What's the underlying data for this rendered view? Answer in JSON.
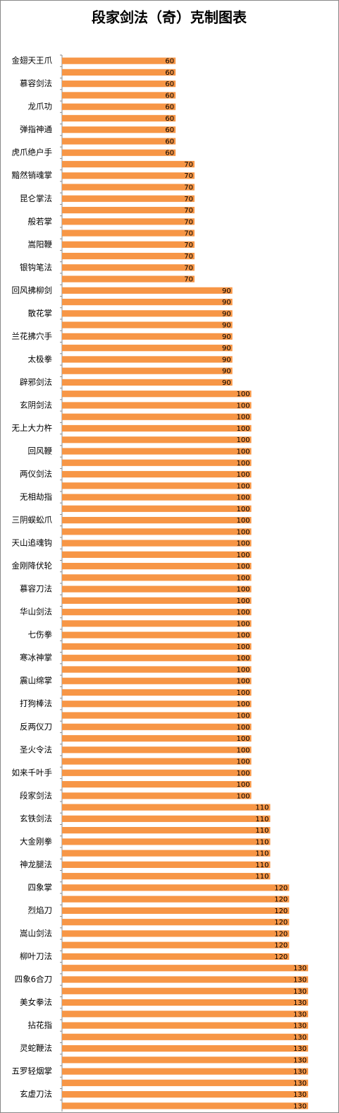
{
  "chart_data": {
    "type": "barh",
    "title": "段家剑法（奇）克制图表",
    "categories": [
      "金翅天王爪",
      null,
      "慕容剑法",
      null,
      "龙爪功",
      null,
      "弹指神通",
      null,
      "虎爪绝户手",
      null,
      "黯然销魂掌",
      null,
      "昆仑掌法",
      null,
      "般若掌",
      null,
      "嵩阳鞭",
      null,
      "银钩笔法",
      null,
      "回风拂柳剑",
      null,
      "散花掌",
      null,
      "兰花拂穴手",
      null,
      "太极拳",
      null,
      "辟邪剑法",
      null,
      "玄阴剑法",
      null,
      "无上大力杵",
      null,
      "回风鞭",
      null,
      "两仪剑法",
      null,
      "无相劫指",
      null,
      "三阴蜈蚣爪",
      null,
      "天山追魂钩",
      null,
      "金刚降伏轮",
      null,
      "慕容刀法",
      null,
      "华山剑法",
      null,
      "七伤拳",
      null,
      "寒冰神掌",
      null,
      "震山绵掌",
      null,
      "打狗棒法",
      null,
      "反两仪刀",
      null,
      "圣火令法",
      null,
      "如来千叶手",
      null,
      "段家剑法",
      null,
      "玄铁剑法",
      null,
      "大金刚拳",
      null,
      "神龙腿法",
      null,
      "四象掌",
      null,
      "烈焰刀",
      null,
      "嵩山剑法",
      null,
      "柳叶刀法",
      null,
      "四象6合刀",
      null,
      "美女拳法",
      null,
      "拈花指",
      null,
      "灵蛇鞭法",
      null,
      "五罗轻烟掌",
      null,
      "玄虚刀法",
      null
    ],
    "values": [
      60,
      60,
      60,
      60,
      60,
      60,
      60,
      60,
      60,
      70,
      70,
      70,
      70,
      70,
      70,
      70,
      70,
      70,
      70,
      70,
      90,
      90,
      90,
      90,
      90,
      90,
      90,
      90,
      90,
      100,
      100,
      100,
      100,
      100,
      100,
      100,
      100,
      100,
      100,
      100,
      100,
      100,
      100,
      100,
      100,
      100,
      100,
      100,
      100,
      100,
      100,
      100,
      100,
      100,
      100,
      100,
      100,
      100,
      100,
      100,
      100,
      100,
      100,
      100,
      100,
      110,
      110,
      110,
      110,
      110,
      110,
      110,
      120,
      120,
      120,
      120,
      120,
      120,
      120,
      130,
      130,
      130,
      130,
      130,
      130,
      130,
      130,
      130,
      130,
      130,
      130,
      130
    ],
    "color": "#f79646",
    "xlim": [
      0,
      135
    ]
  }
}
